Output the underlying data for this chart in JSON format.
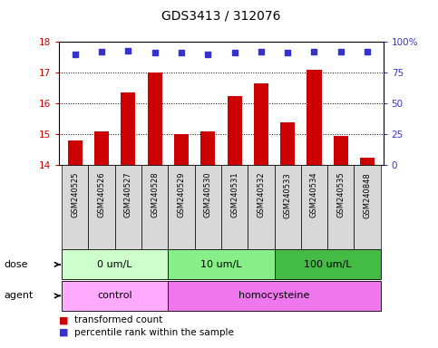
{
  "title": "GDS3413 / 312076",
  "samples": [
    "GSM240525",
    "GSM240526",
    "GSM240527",
    "GSM240528",
    "GSM240529",
    "GSM240530",
    "GSM240531",
    "GSM240532",
    "GSM240533",
    "GSM240534",
    "GSM240535",
    "GSM240848"
  ],
  "transformed_counts": [
    14.8,
    15.1,
    16.35,
    17.0,
    15.0,
    15.1,
    16.25,
    16.65,
    15.4,
    17.1,
    14.95,
    14.25
  ],
  "percentile_ranks": [
    90,
    92,
    93,
    91,
    91,
    90,
    91,
    92,
    91,
    92,
    92,
    92
  ],
  "ylim_left": [
    14,
    18
  ],
  "ylim_right": [
    0,
    100
  ],
  "yticks_left": [
    14,
    15,
    16,
    17,
    18
  ],
  "yticks_right": [
    0,
    25,
    50,
    75,
    100
  ],
  "ytick_labels_right": [
    "0",
    "25",
    "50",
    "75",
    "100%"
  ],
  "bar_color": "#cc0000",
  "dot_color": "#3333cc",
  "dose_groups": [
    {
      "label": "0 um/L",
      "start": 0,
      "end": 4,
      "color": "#ccffcc"
    },
    {
      "label": "10 um/L",
      "start": 4,
      "end": 8,
      "color": "#88ee88"
    },
    {
      "label": "100 um/L",
      "start": 8,
      "end": 12,
      "color": "#44bb44"
    }
  ],
  "agent_groups": [
    {
      "label": "control",
      "start": 0,
      "end": 4,
      "color": "#ffaaff"
    },
    {
      "label": "homocysteine",
      "start": 4,
      "end": 12,
      "color": "#ee77ee"
    }
  ],
  "dose_label": "dose",
  "agent_label": "agent",
  "legend_items": [
    {
      "color": "#cc0000",
      "label": "transformed count"
    },
    {
      "color": "#3333cc",
      "label": "percentile rank within the sample"
    }
  ],
  "background_color": "#ffffff",
  "tick_label_color_left": "#cc0000",
  "tick_label_color_right": "#3333cc",
  "sample_bg_color": "#d8d8d8",
  "sample_label_fontsize": 6.0,
  "bar_width": 0.55
}
